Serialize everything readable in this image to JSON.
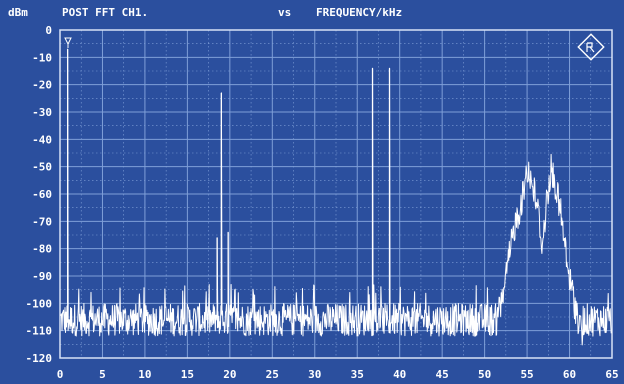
{
  "header": {
    "unit": "dBm",
    "trace": "POST FFT CH1.",
    "vs": "vs",
    "xaxis": "FREQUENCY/kHz"
  },
  "colors": {
    "background": "#2b4f9e",
    "grid": "#7f9fd8",
    "trace": "#ffffff",
    "text": "#ffffff"
  },
  "logo_icon": "rohde-schwarz-diamond-logo",
  "marker_icon": "marker-triangle-icon",
  "chart_data": {
    "type": "line",
    "title": "POST FFT CH1.  vs  FREQUENCY/kHz",
    "ylabel": "dBm",
    "xlabel": "FREQUENCY/kHz",
    "xlim": [
      0,
      65
    ],
    "ylim": [
      -120,
      0
    ],
    "xticks": [
      0,
      5,
      10,
      15,
      20,
      25,
      30,
      35,
      40,
      45,
      50,
      55,
      60,
      65
    ],
    "yticks": [
      0,
      -10,
      -20,
      -30,
      -40,
      -50,
      -60,
      -70,
      -80,
      -90,
      -100,
      -110,
      -120
    ],
    "x_tick_labels": [
      "0",
      "5",
      "10",
      "15",
      "20",
      "25",
      "30",
      "35",
      "40",
      "45",
      "50",
      "55",
      "60",
      "65"
    ],
    "y_tick_labels": [
      "0",
      "-10",
      "-20",
      "-30",
      "-40",
      "-50",
      "-60",
      "-70",
      "-80",
      "-90",
      "-100",
      "-110",
      "-120"
    ],
    "grid": true,
    "noise_floor_range": [
      -112,
      -100
    ],
    "series": [
      {
        "peaks": [
          {
            "x": 0.9,
            "y": -7
          },
          {
            "x": 18.5,
            "y": -76
          },
          {
            "x": 19.0,
            "y": -23
          },
          {
            "x": 19.8,
            "y": -74
          },
          {
            "x": 36.8,
            "y": -14
          },
          {
            "x": 38.8,
            "y": -14
          }
        ],
        "envelope": [
          {
            "x": 51.5,
            "y": -100
          },
          {
            "x": 52.5,
            "y": -85
          },
          {
            "x": 53.5,
            "y": -66
          },
          {
            "x": 54.5,
            "y": -55
          },
          {
            "x": 55.0,
            "y": -44
          },
          {
            "x": 55.5,
            "y": -49
          },
          {
            "x": 56.2,
            "y": -58
          },
          {
            "x": 56.8,
            "y": -73
          },
          {
            "x": 57.3,
            "y": -57
          },
          {
            "x": 57.8,
            "y": -45
          },
          {
            "x": 58.3,
            "y": -50
          },
          {
            "x": 59.0,
            "y": -62
          },
          {
            "x": 59.8,
            "y": -82
          },
          {
            "x": 60.8,
            "y": -97
          },
          {
            "x": 61.5,
            "y": -104
          }
        ]
      }
    ]
  }
}
